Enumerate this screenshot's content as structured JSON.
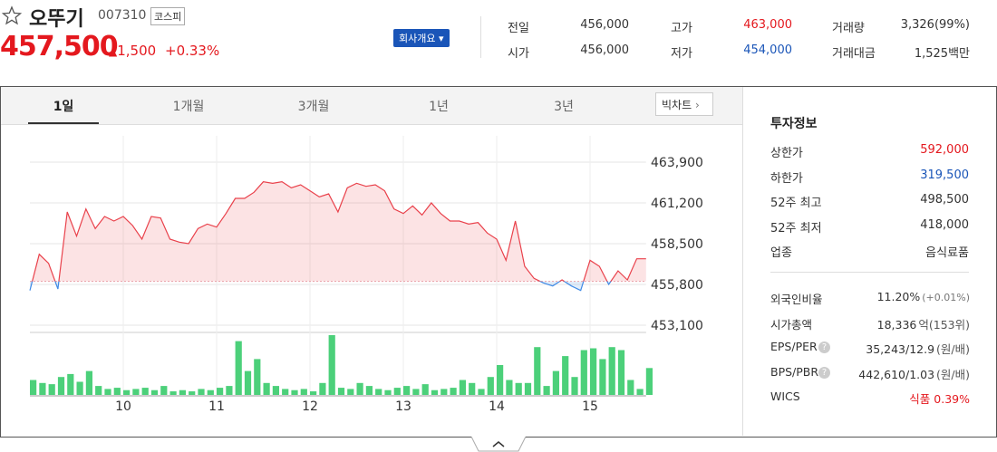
{
  "header": {
    "name": "오뚜기",
    "code": "007310",
    "market": "코스피",
    "price": "457,500",
    "change": "1,500",
    "change_pct": "+0.33%",
    "button": "회사개요"
  },
  "quote": [
    [
      "전일",
      "456,000"
    ],
    [
      "시가",
      "456,000"
    ],
    [
      "고가",
      "463,000"
    ],
    [
      "저가",
      "454,000"
    ],
    [
      "거래량",
      "3,326(99%)"
    ],
    [
      "거래대금",
      "1,525백만"
    ]
  ],
  "tabs": [
    "1일",
    "1개월",
    "3개월",
    "1년",
    "3년"
  ],
  "big_chart": "빅차트",
  "chart": {
    "type": "line",
    "x": [
      9,
      9.1,
      9.2,
      9.3,
      9.4,
      9.5,
      9.6,
      9.7,
      9.8,
      9.9,
      10,
      10.1,
      10.2,
      10.3,
      10.4,
      10.5,
      10.6,
      10.7,
      10.8,
      10.9,
      11,
      11.1,
      11.2,
      11.3,
      11.4,
      11.5,
      11.6,
      11.7,
      11.8,
      11.9,
      12,
      12.1,
      12.2,
      12.3,
      12.4,
      12.5,
      12.6,
      12.7,
      12.8,
      12.9,
      13,
      13.1,
      13.2,
      13.3,
      13.4,
      13.5,
      13.6,
      13.7,
      13.8,
      13.9,
      14,
      14.1,
      14.2,
      14.3,
      14.4,
      14.5,
      14.6,
      14.7,
      14.8,
      14.9,
      15,
      15.1,
      15.2,
      15.3,
      15.4,
      15.5,
      15.6
    ],
    "values": [
      455400,
      457800,
      457200,
      455500,
      460600,
      459000,
      460800,
      459500,
      460300,
      460000,
      460300,
      459700,
      458800,
      460300,
      460200,
      458800,
      458600,
      458500,
      459500,
      459800,
      459600,
      460500,
      461500,
      461500,
      461900,
      462600,
      462500,
      462600,
      462200,
      462400,
      462000,
      461600,
      461800,
      460600,
      462200,
      462500,
      462300,
      462400,
      462000,
      460800,
      460500,
      461000,
      460400,
      461200,
      460500,
      460000,
      460000,
      459800,
      459900,
      459200,
      458800,
      457400,
      460000,
      457000,
      456200,
      455900,
      455700,
      456100,
      455700,
      455400,
      457400,
      457000,
      455800,
      456700,
      456100,
      457500,
      457500
    ],
    "volume": [
      25,
      20,
      18,
      30,
      35,
      22,
      40,
      15,
      10,
      12,
      8,
      10,
      12,
      8,
      15,
      6,
      8,
      6,
      10,
      8,
      12,
      15,
      90,
      40,
      60,
      20,
      15,
      10,
      8,
      10,
      6,
      20,
      100,
      12,
      10,
      20,
      15,
      10,
      8,
      12,
      15,
      10,
      18,
      8,
      10,
      12,
      25,
      20,
      10,
      30,
      50,
      25,
      20,
      20,
      80,
      15,
      40,
      65,
      30,
      75,
      78,
      60,
      80,
      75,
      25,
      10,
      45
    ],
    "volume_lim": [
      0,
      100
    ],
    "baseline": 456000,
    "xlim": [
      9,
      15.6
    ],
    "xticks": [
      10,
      11,
      12,
      13,
      14,
      15
    ],
    "ylim": [
      453100,
      463900
    ],
    "yticks": [
      {
        "value": 453100,
        "label": "453,100"
      },
      {
        "value": 455800,
        "label": "455,800"
      },
      {
        "value": 458500,
        "label": "458,500"
      },
      {
        "value": 461200,
        "label": "461,200"
      },
      {
        "value": 463900,
        "label": "463,900"
      }
    ],
    "up_color": "#e9414b",
    "down_color": "#3f8ae6",
    "volume_color": "#4cd07a"
  },
  "invest": {
    "title": "투자정보",
    "rows": [
      [
        "상한가",
        "592,000"
      ],
      [
        "하한가",
        "319,500"
      ],
      [
        "52주 최고",
        "498,500"
      ],
      [
        "52주 최저",
        "418,000"
      ],
      [
        "업종",
        "음식료품"
      ]
    ],
    "rows2": [
      [
        "외국인비율",
        "11.20%",
        "(+0.01%)"
      ],
      [
        "시가총액",
        "18,336",
        "억(153위)"
      ],
      [
        "EPS/PER",
        "35,243/12.9",
        "(원/배)"
      ],
      [
        "BPS/PBR",
        "442,610/1.03",
        "(원/배)"
      ],
      [
        "WICS",
        "식품",
        "0.39%"
      ]
    ]
  }
}
